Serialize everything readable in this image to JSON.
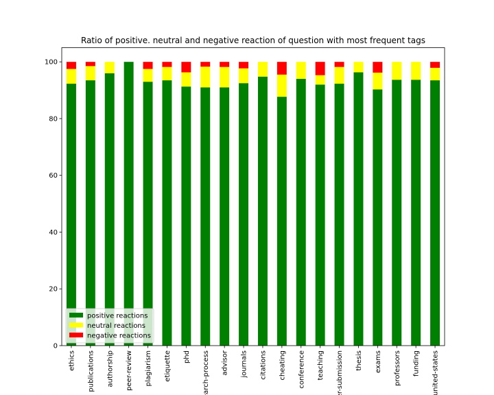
{
  "chart_data": {
    "type": "bar",
    "stacked": true,
    "title": "Ratio of positive. neutral and negative reaction of question with most frequent tags",
    "xlabel": "",
    "ylabel": "",
    "ylim": [
      0,
      105
    ],
    "yticks": [
      0,
      20,
      40,
      60,
      80,
      100
    ],
    "grid": false,
    "legend_position": "bottom-left",
    "categories": [
      "ethics",
      "publications",
      "authorship",
      "peer-review",
      "plagiarism",
      "etiquette",
      "phd",
      "research-process",
      "advisor",
      "journals",
      "citations",
      "cheating",
      "conference",
      "teaching",
      "paper-submission",
      "thesis",
      "exams",
      "professors",
      "funding",
      "united-states"
    ],
    "series": [
      {
        "name": "positive reactions",
        "color": "#008000",
        "values": [
          92.3,
          93.5,
          96.0,
          100.0,
          93.0,
          93.5,
          91.3,
          91.0,
          91.0,
          92.5,
          94.8,
          87.7,
          94.0,
          92.0,
          92.3,
          96.3,
          90.3,
          93.7,
          93.7,
          93.5
        ]
      },
      {
        "name": "neutral reactions",
        "color": "#ffff00",
        "values": [
          5.2,
          5.0,
          4.0,
          0.0,
          4.5,
          4.7,
          5.0,
          7.3,
          7.2,
          5.2,
          5.2,
          7.8,
          6.0,
          3.3,
          5.9,
          3.7,
          5.9,
          6.3,
          6.3,
          4.4
        ]
      },
      {
        "name": "negative reactions",
        "color": "#ff0000",
        "values": [
          2.5,
          1.5,
          0.0,
          0.0,
          2.5,
          1.8,
          3.7,
          1.7,
          1.8,
          2.3,
          0.0,
          4.5,
          0.0,
          4.7,
          1.8,
          0.0,
          3.8,
          0.0,
          0.0,
          2.1
        ]
      }
    ]
  }
}
